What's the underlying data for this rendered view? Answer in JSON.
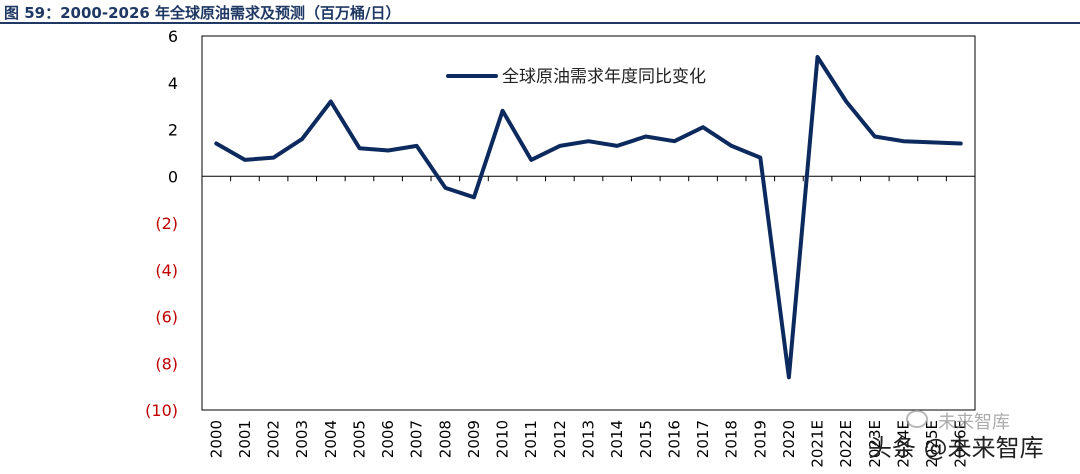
{
  "header": {
    "title": "图 59：2000-2026 年全球原油需求及预测（百万桶/日）"
  },
  "watermark": {
    "small": "未来智库",
    "large": "头条 @未来智库"
  },
  "colors": {
    "line": "#0d2a5e",
    "title": "#1f3864",
    "negative_tick": "#c00000",
    "positive_tick": "#000000"
  },
  "chart_data": {
    "type": "line",
    "title": "",
    "xlabel": "",
    "ylabel": "",
    "ylim": [
      -10,
      6
    ],
    "yticks": [
      6,
      4,
      2,
      0,
      -2,
      -4,
      -6,
      -8,
      -10
    ],
    "ytick_labels": [
      "6",
      "4",
      "2",
      "0",
      "(2)",
      "(4)",
      "(6)",
      "(8)",
      "(10)"
    ],
    "legend_position": "top-center",
    "grid": false,
    "categories": [
      "2000",
      "2001",
      "2002",
      "2003",
      "2004",
      "2005",
      "2006",
      "2007",
      "2008",
      "2009",
      "2010",
      "2011",
      "2012",
      "2013",
      "2014",
      "2015",
      "2016",
      "2017",
      "2018",
      "2019",
      "2020",
      "2021E",
      "2022E",
      "2023E",
      "2024E",
      "2025E",
      "2026E"
    ],
    "series": [
      {
        "name": "全球原油需求年度同比变化",
        "values": [
          1.4,
          0.7,
          0.8,
          1.6,
          3.2,
          1.2,
          1.1,
          1.3,
          -0.5,
          -0.9,
          2.8,
          0.7,
          1.3,
          1.5,
          1.3,
          1.7,
          1.5,
          2.1,
          1.3,
          0.8,
          -8.6,
          5.1,
          3.2,
          1.7,
          1.5,
          1.45,
          1.4
        ]
      }
    ]
  }
}
